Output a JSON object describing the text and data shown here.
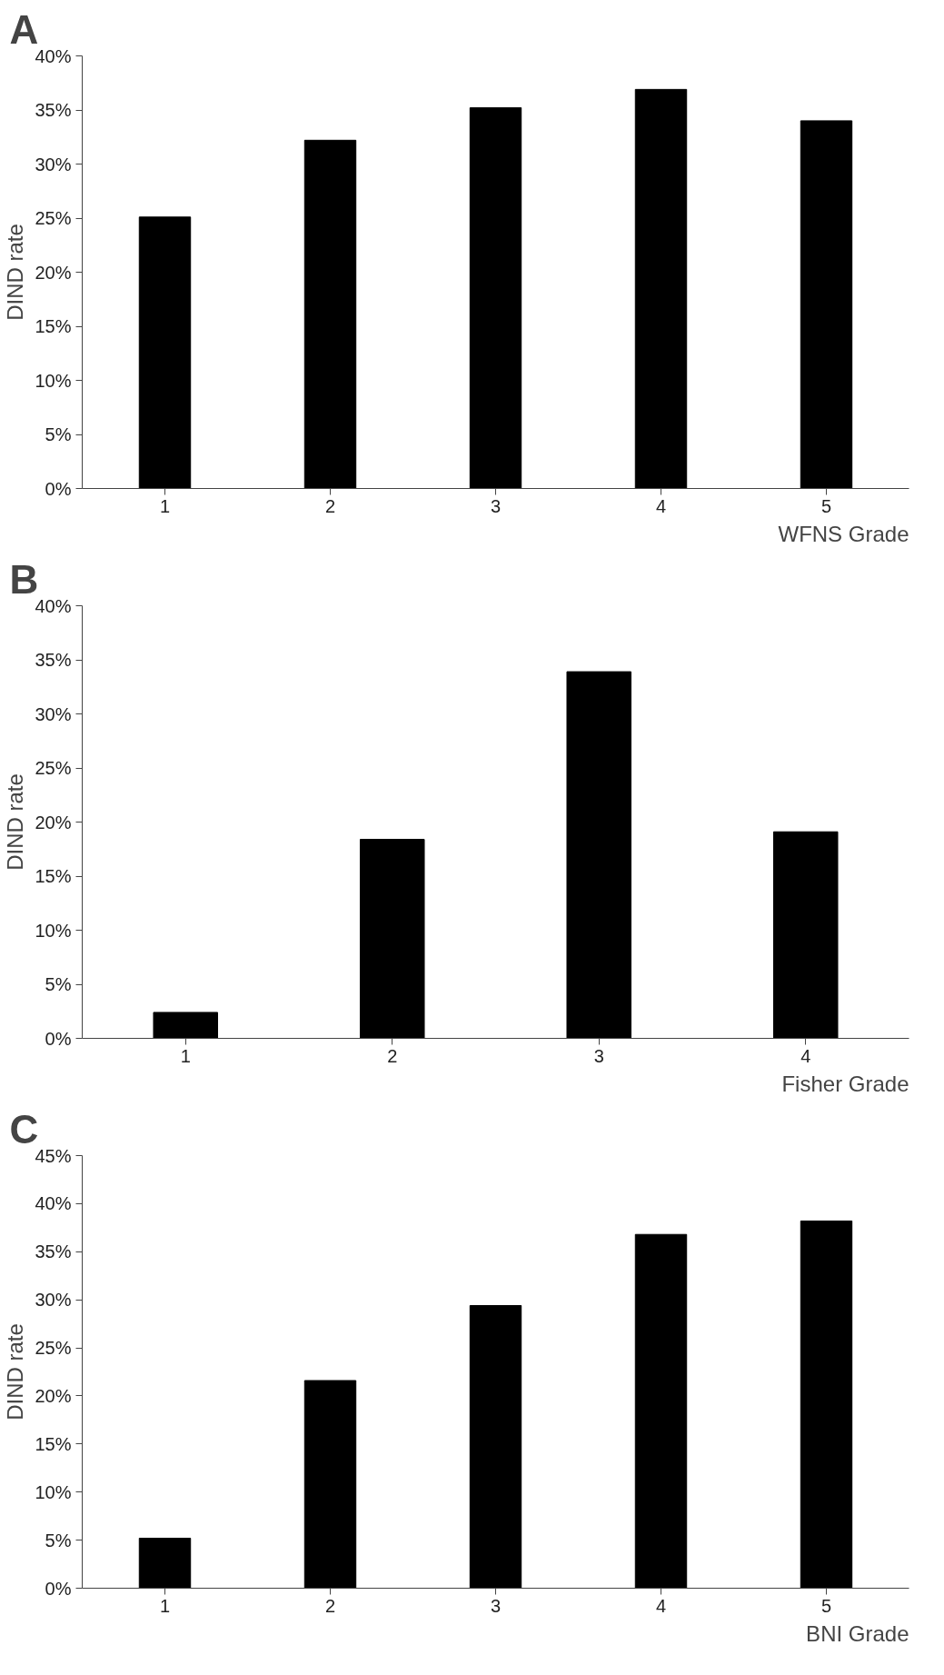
{
  "chart_data": [
    {
      "type": "bar",
      "title": "A",
      "xlabel": "WFNS Grade",
      "ylabel": "DIND rate",
      "categories": [
        "1",
        "2",
        "3",
        "4",
        "5"
      ],
      "values": [
        25.1,
        32.2,
        35.2,
        36.9,
        34.0
      ],
      "color": "#000000",
      "ylim": [
        0,
        40
      ],
      "yticks": [
        {
          "value": 0,
          "label": "0%"
        },
        {
          "value": 5,
          "label": "5%"
        },
        {
          "value": 10,
          "label": "10%"
        },
        {
          "value": 15,
          "label": "15%"
        },
        {
          "value": 20,
          "label": "20%"
        },
        {
          "value": 25,
          "label": "25%"
        },
        {
          "value": 30,
          "label": "30%"
        },
        {
          "value": 35,
          "label": "35%"
        },
        {
          "value": 40,
          "label": "40%"
        }
      ],
      "grid": false
    },
    {
      "type": "bar",
      "title": "B",
      "xlabel": "Fisher Grade",
      "ylabel": "DIND rate",
      "categories": [
        "1",
        "2",
        "3",
        "4"
      ],
      "values": [
        2.4,
        18.4,
        33.9,
        19.1
      ],
      "color": "#000000",
      "ylim": [
        0,
        40
      ],
      "yticks": [
        {
          "value": 0,
          "label": "0%"
        },
        {
          "value": 5,
          "label": "5%"
        },
        {
          "value": 10,
          "label": "10%"
        },
        {
          "value": 15,
          "label": "15%"
        },
        {
          "value": 20,
          "label": "20%"
        },
        {
          "value": 25,
          "label": "25%"
        },
        {
          "value": 30,
          "label": "30%"
        },
        {
          "value": 35,
          "label": "35%"
        },
        {
          "value": 40,
          "label": "40%"
        }
      ],
      "grid": false
    },
    {
      "type": "bar",
      "title": "C",
      "xlabel": "BNI Grade",
      "ylabel": "DIND rate",
      "categories": [
        "1",
        "2",
        "3",
        "4",
        "5"
      ],
      "values": [
        5.2,
        21.6,
        29.4,
        36.8,
        38.2
      ],
      "color": "#000000",
      "ylim": [
        0,
        45
      ],
      "yticks": [
        {
          "value": 0,
          "label": "0%"
        },
        {
          "value": 5,
          "label": "5%"
        },
        {
          "value": 10,
          "label": "10%"
        },
        {
          "value": 15,
          "label": "15%"
        },
        {
          "value": 20,
          "label": "20%"
        },
        {
          "value": 25,
          "label": "25%"
        },
        {
          "value": 30,
          "label": "30%"
        },
        {
          "value": 35,
          "label": "35%"
        },
        {
          "value": 40,
          "label": "40%"
        },
        {
          "value": 45,
          "label": "45%"
        }
      ],
      "grid": false
    }
  ]
}
